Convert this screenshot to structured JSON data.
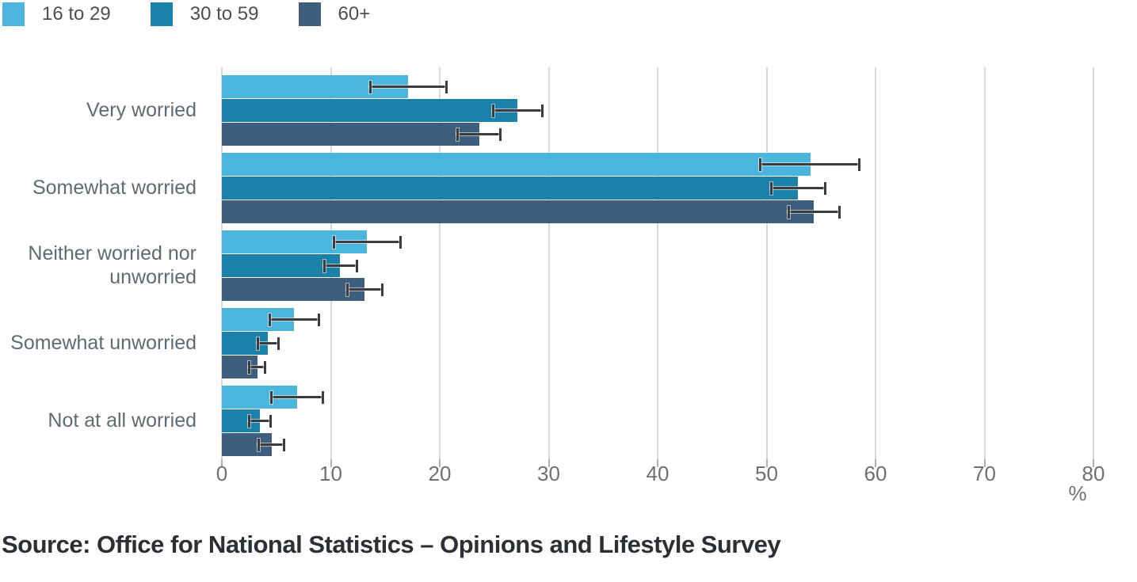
{
  "legend": {
    "items": [
      {
        "label": "16 to 29",
        "color": "#4BB5DC"
      },
      {
        "label": "30 to 59",
        "color": "#1C81A9"
      },
      {
        "label": "60+",
        "color": "#3D5E7C"
      }
    ]
  },
  "chart_data": {
    "type": "bar",
    "orientation": "horizontal",
    "title": "",
    "categories": [
      "Very worried",
      "Somewhat worried",
      "Neither worried nor unworried",
      "Somewhat unworried",
      "Not at all worried"
    ],
    "series": [
      {
        "name": "16 to 29",
        "color": "#4BB5DC",
        "values": [
          17.1,
          54.0,
          13.3,
          6.6,
          6.9
        ],
        "ci_low": [
          13.5,
          49.3,
          10.2,
          4.3,
          4.4
        ],
        "ci_high": [
          20.7,
          58.6,
          16.5,
          9.0,
          9.4
        ]
      },
      {
        "name": "30 to 59",
        "color": "#1C81A9",
        "values": [
          27.1,
          52.9,
          10.8,
          4.2,
          3.5
        ],
        "ci_low": [
          24.8,
          50.3,
          9.3,
          3.2,
          2.4
        ],
        "ci_high": [
          29.5,
          55.5,
          12.5,
          5.3,
          4.6
        ]
      },
      {
        "name": "60+",
        "color": "#3D5E7C",
        "values": [
          23.6,
          54.3,
          13.1,
          3.3,
          4.6
        ],
        "ci_low": [
          21.5,
          51.9,
          11.4,
          2.4,
          3.3
        ],
        "ci_high": [
          25.7,
          56.8,
          14.8,
          4.1,
          5.8
        ]
      }
    ],
    "error_bars": true,
    "xlabel": "%",
    "ylabel": "",
    "x_ticks": [
      0,
      10,
      20,
      30,
      40,
      50,
      60,
      70,
      80
    ],
    "xlim": [
      0,
      80
    ],
    "grid": true,
    "legend_position": "top"
  },
  "colors": {
    "gridline": "#d9d9d9",
    "tick": "#b0b0b0",
    "error_bar": "#3c3c3c",
    "tick_label": "#707070",
    "category_label": "#5f6a73",
    "source_text": "#2b3037"
  },
  "source": {
    "text": "Source: Office for National Statistics – Opinions and Lifestyle Survey"
  }
}
